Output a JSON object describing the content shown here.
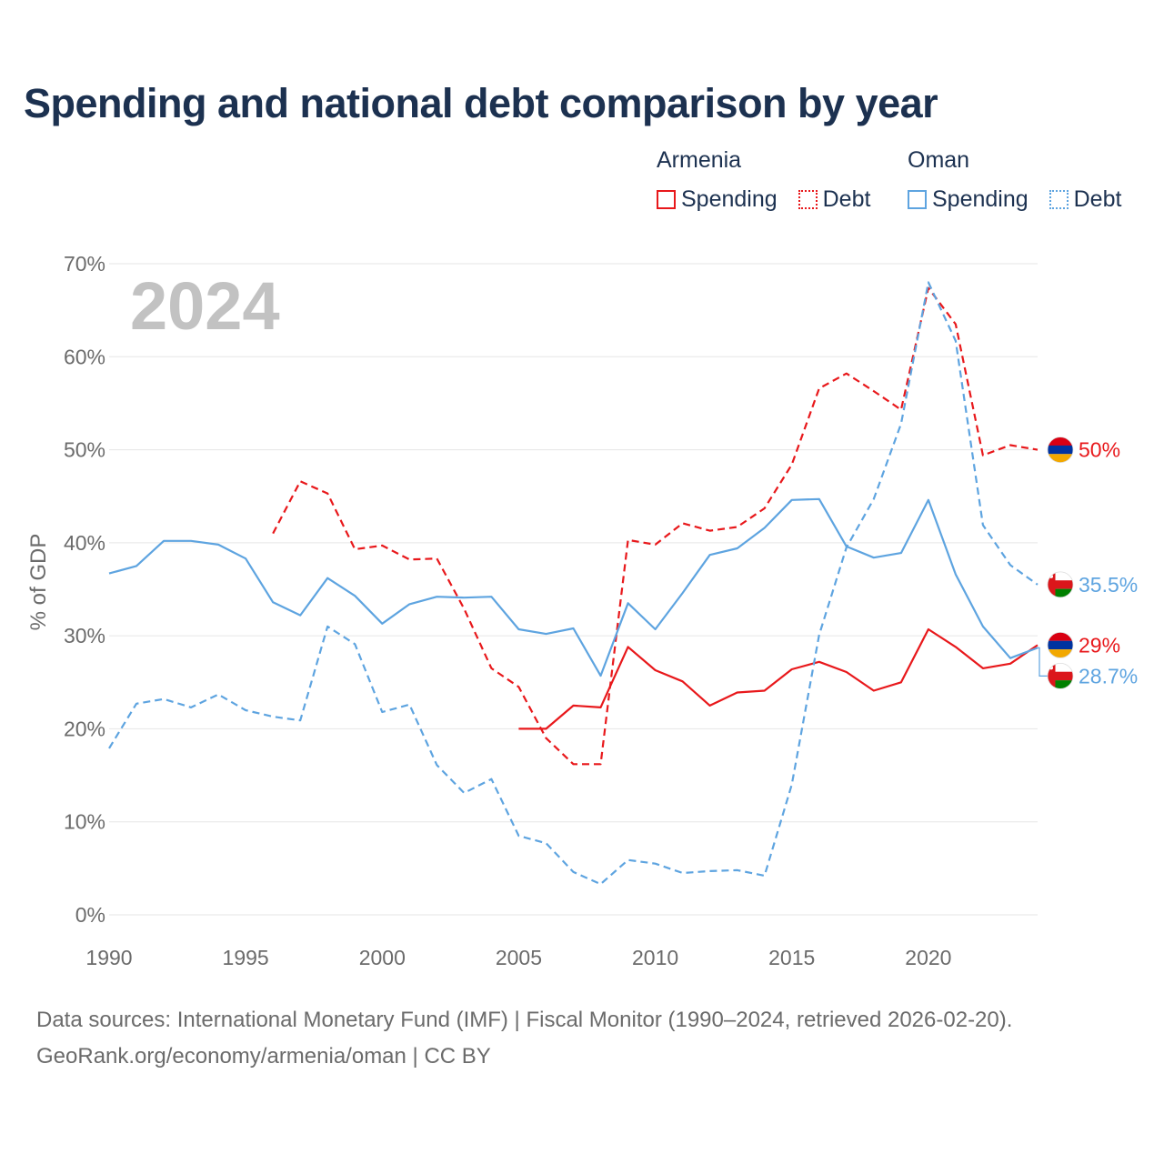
{
  "title": "Spending and national debt comparison by year",
  "legend": {
    "groups": [
      {
        "country": "Armenia",
        "color": "#e8181b",
        "items": [
          {
            "label": "Spending",
            "style": "solid"
          },
          {
            "label": "Debt",
            "style": "dotted"
          }
        ]
      },
      {
        "country": "Oman",
        "color": "#5ea4e0",
        "items": [
          {
            "label": "Spending",
            "style": "solid"
          },
          {
            "label": "Debt",
            "style": "dotted"
          }
        ]
      }
    ]
  },
  "footer": {
    "source": "Data sources: International Monetary Fund (IMF) | Fiscal Monitor (1990–2024, retrieved 2026-02-20).",
    "credit": "GeoRank.org/economy/armenia/oman | CC BY"
  },
  "chart_data": {
    "type": "line",
    "title": "Spending and national debt comparison by year",
    "year_label": "2024",
    "ylabel": "% of GDP",
    "xlim": [
      1990,
      2024
    ],
    "ylim": [
      0,
      70
    ],
    "xticks": [
      1990,
      1995,
      2000,
      2005,
      2010,
      2015,
      2020
    ],
    "xtick_labels": [
      "1990",
      "1995",
      "2000",
      "2005",
      "2010",
      "2015",
      "2020"
    ],
    "yticks": [
      0,
      10,
      20,
      30,
      40,
      50,
      60,
      70
    ],
    "ytick_labels": [
      "0%",
      "10%",
      "20%",
      "30%",
      "40%",
      "50%",
      "60%",
      "70%"
    ],
    "grid": true,
    "series": [
      {
        "name": "Armenia Spending",
        "country": "Armenia",
        "color": "#e8181b",
        "dashed": false,
        "x": [
          2005,
          2006,
          2007,
          2008,
          2009,
          2010,
          2011,
          2012,
          2013,
          2014,
          2015,
          2016,
          2017,
          2018,
          2019,
          2020,
          2021,
          2022,
          2023,
          2024
        ],
        "values": [
          20,
          20,
          22.5,
          22.3,
          28.8,
          26.3,
          25.1,
          22.5,
          23.9,
          24.1,
          26.4,
          27.2,
          26.1,
          24.1,
          25,
          30.7,
          28.8,
          26.5,
          27,
          29
        ],
        "end_label": "29%",
        "flag": "armenia"
      },
      {
        "name": "Armenia Debt",
        "country": "Armenia",
        "color": "#e8181b",
        "dashed": true,
        "x": [
          1996,
          1997,
          1998,
          1999,
          2000,
          2001,
          2002,
          2003,
          2004,
          2005,
          2006,
          2007,
          2008,
          2009,
          2010,
          2011,
          2012,
          2013,
          2014,
          2015,
          2016,
          2017,
          2018,
          2019,
          2020,
          2021,
          2022,
          2023,
          2024
        ],
        "values": [
          41,
          46.6,
          45.3,
          39.3,
          39.7,
          38.2,
          38.3,
          32.9,
          26.5,
          24.5,
          19,
          16.2,
          16.2,
          40.3,
          39.8,
          42.1,
          41.3,
          41.7,
          43.7,
          48.4,
          56.6,
          58.2,
          56.3,
          54.3,
          67.4,
          63.5,
          49.4,
          50.5,
          50
        ],
        "end_label": "50%",
        "flag": "armenia"
      },
      {
        "name": "Oman Spending",
        "country": "Oman",
        "color": "#5ea4e0",
        "dashed": false,
        "x": [
          1990,
          1991,
          1992,
          1993,
          1994,
          1995,
          1996,
          1997,
          1998,
          1999,
          2000,
          2001,
          2002,
          2003,
          2004,
          2005,
          2006,
          2007,
          2008,
          2009,
          2010,
          2011,
          2012,
          2013,
          2014,
          2015,
          2016,
          2017,
          2018,
          2019,
          2020,
          2021,
          2022,
          2023,
          2024
        ],
        "values": [
          36.7,
          37.5,
          40.2,
          40.2,
          39.8,
          38.3,
          33.6,
          32.2,
          36.2,
          34.3,
          31.3,
          33.4,
          34.2,
          34.1,
          34.2,
          30.7,
          30.2,
          30.8,
          25.7,
          33.5,
          30.7,
          34.6,
          38.7,
          39.4,
          41.6,
          44.6,
          44.7,
          39.6,
          38.4,
          38.9,
          44.6,
          36.6,
          31,
          27.6,
          28.7
        ],
        "end_label": "28.7%",
        "flag": "oman"
      },
      {
        "name": "Oman Debt",
        "country": "Oman",
        "color": "#5ea4e0",
        "dashed": true,
        "x": [
          1990,
          1991,
          1992,
          1993,
          1994,
          1995,
          1996,
          1997,
          1998,
          1999,
          2000,
          2001,
          2002,
          2003,
          2004,
          2005,
          2006,
          2007,
          2008,
          2009,
          2010,
          2011,
          2012,
          2013,
          2014,
          2015,
          2016,
          2017,
          2018,
          2019,
          2020,
          2021,
          2022,
          2023,
          2024
        ],
        "values": [
          17.9,
          22.7,
          23.2,
          22.3,
          23.7,
          22,
          21.3,
          20.9,
          31,
          29.1,
          21.8,
          22.6,
          16.1,
          13.1,
          14.6,
          8.5,
          7.7,
          4.6,
          3.3,
          5.9,
          5.5,
          4.5,
          4.7,
          4.8,
          4.2,
          14,
          30.1,
          39.5,
          44.7,
          52.8,
          68,
          61.7,
          41.9,
          37.6,
          35.5
        ],
        "end_label": "35.5%",
        "flag": "oman"
      }
    ]
  }
}
